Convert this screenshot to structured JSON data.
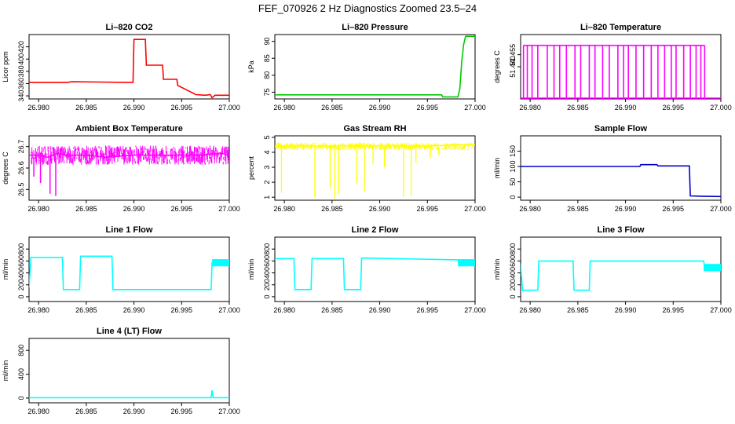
{
  "figure": {
    "title": "FEF_070926  2 Hz Diagnostics Zoomed 23.5–24"
  },
  "chart_data": [
    {
      "type": "line",
      "title": "Li–820 CO2",
      "ylabel": "Licor ppm",
      "color": "#ff0000",
      "xlim": [
        26.979,
        27.0
      ],
      "ylim": [
        335,
        440
      ],
      "x_ticks": [
        "26.980",
        "26.985",
        "26.990",
        "26.995",
        "27.000"
      ],
      "y_ticks": [
        "340",
        "360",
        "380",
        "400",
        "420"
      ],
      "series": [
        {
          "x": [
            26.979,
            26.983,
            26.9835,
            26.9895,
            26.9899,
            26.99,
            26.9912,
            26.9913,
            26.993,
            26.9931,
            26.9945,
            26.9946,
            26.9965,
            26.9975,
            26.998,
            26.9982,
            26.9985,
            27.0
          ],
          "y": [
            362,
            362,
            363,
            362,
            362,
            432,
            432,
            390,
            390,
            367,
            367,
            357,
            342,
            341,
            342,
            337,
            341,
            341
          ]
        }
      ]
    },
    {
      "type": "line",
      "title": "Li–820 Pressure",
      "ylabel": "kPa",
      "color": "#00cc00",
      "xlim": [
        26.979,
        27.0
      ],
      "ylim": [
        73,
        92
      ],
      "x_ticks": [
        "26.980",
        "26.985",
        "26.990",
        "26.995",
        "27.000"
      ],
      "y_ticks": [
        "75",
        "80",
        "85",
        "90"
      ],
      "series": [
        {
          "x": [
            26.979,
            26.9965,
            26.9966,
            26.9982,
            26.9984,
            26.9986,
            26.9988,
            26.999,
            27.0
          ],
          "y": [
            74.2,
            74.2,
            73.6,
            73.6,
            76,
            84,
            89,
            91.5,
            91.5
          ]
        }
      ]
    },
    {
      "type": "line",
      "title": "Li–820 Temperature",
      "ylabel": "degrees C",
      "color": "#ff00ff",
      "xlim": [
        26.979,
        27.0
      ],
      "ylim": [
        51.4,
        51.48
      ],
      "x_ticks": [
        "26.980",
        "26.985",
        "26.990",
        "26.995",
        "27.000"
      ],
      "y_ticks": [
        "51.440",
        "51.455"
      ],
      "series": [
        {
          "x": [
            26.9793,
            26.9797,
            26.9802,
            26.9808,
            26.9818,
            26.9825,
            26.9831,
            26.9838,
            26.9847,
            26.9853,
            26.9862,
            26.9868,
            26.9876,
            26.9883,
            26.9892,
            26.9898,
            26.9903,
            26.9911,
            26.9919,
            26.9927,
            26.9934,
            26.9941,
            26.9948,
            26.9953,
            26.9961,
            26.9968,
            26.9974,
            26.9979,
            26.9983
          ],
          "y": [
            51.4665,
            51.4665,
            51.4665,
            51.4665,
            51.4665,
            51.4665,
            51.4665,
            51.4665,
            51.4665,
            51.4665,
            51.4665,
            51.4665,
            51.4665,
            51.4665,
            51.4665,
            51.4665,
            51.4665,
            51.4665,
            51.4665,
            51.4665,
            51.4665,
            51.4665,
            51.4665,
            51.4665,
            51.4665,
            51.4665,
            51.4665,
            51.4665,
            51.4665
          ]
        }
      ]
    },
    {
      "type": "line",
      "title": "Ambient Box Temperature",
      "ylabel": "degrees C",
      "color": "#ff00ff",
      "xlim": [
        26.979,
        27.0
      ],
      "ylim": [
        26.45,
        26.75
      ],
      "x_ticks": [
        "26.980",
        "26.985",
        "26.990",
        "26.995",
        "27.000"
      ],
      "y_ticks": [
        "26.5",
        "26.6",
        "26.7"
      ],
      "series": [
        {
          "x": [
            26.979,
            26.98,
            26.981,
            26.982,
            26.983,
            26.985,
            26.987,
            26.99,
            26.993,
            26.995,
            26.997,
            26.999,
            27.0
          ],
          "y": [
            26.66,
            26.66,
            26.65,
            26.67,
            26.66,
            26.66,
            26.65,
            26.66,
            26.66,
            26.66,
            26.66,
            26.67,
            26.66
          ]
        }
      ]
    },
    {
      "type": "line",
      "title": "Gas Stream RH",
      "ylabel": "percent",
      "color": "#ffff00",
      "xlim": [
        26.979,
        27.0
      ],
      "ylim": [
        0.8,
        5.1
      ],
      "x_ticks": [
        "26.980",
        "26.985",
        "26.990",
        "26.995",
        "27.000"
      ],
      "y_ticks": [
        "1",
        "2",
        "3",
        "4",
        "5"
      ],
      "series": [
        {
          "x": [
            26.979,
            26.98,
            26.982,
            26.984,
            26.986,
            26.988,
            26.99,
            26.992,
            26.994,
            26.996,
            26.998,
            27.0
          ],
          "y": [
            4.4,
            4.4,
            4.45,
            4.4,
            4.45,
            4.4,
            4.45,
            4.45,
            4.4,
            4.45,
            4.5,
            4.5
          ]
        }
      ]
    },
    {
      "type": "line",
      "title": "Sample Flow",
      "ylabel": "ml/min",
      "color": "#0000cc",
      "xlim": [
        26.979,
        27.0
      ],
      "ylim": [
        -10,
        200
      ],
      "x_ticks": [
        "26.980",
        "26.985",
        "26.990",
        "26.995",
        "27.000"
      ],
      "y_ticks": [
        "0",
        "50",
        "100",
        "150"
      ],
      "series": [
        {
          "x": [
            26.979,
            26.9915,
            26.9916,
            26.9933,
            26.9934,
            26.9967,
            26.9968,
            26.998,
            27.0
          ],
          "y": [
            100,
            100,
            106,
            106,
            102,
            102,
            4,
            3,
            2
          ]
        }
      ]
    },
    {
      "type": "line",
      "title": "Line 1 Flow",
      "ylabel": "ml/min",
      "color": "#00ffff",
      "xlim": [
        26.979,
        27.0
      ],
      "ylim": [
        -80,
        1000
      ],
      "x_ticks": [
        "26.980",
        "26.985",
        "26.990",
        "26.995",
        "27.000"
      ],
      "y_ticks": [
        "0",
        "200",
        "400",
        "600",
        "800"
      ],
      "series": [
        {
          "x": [
            26.979,
            26.9792,
            26.9825,
            26.9826,
            26.9843,
            26.9844,
            26.9877,
            26.9878,
            26.9981,
            26.9982,
            27.0
          ],
          "y": [
            150,
            660,
            660,
            120,
            120,
            680,
            680,
            120,
            120,
            570,
            570
          ]
        }
      ]
    },
    {
      "type": "line",
      "title": "Line 2 Flow",
      "ylabel": "ml/min",
      "color": "#00ffff",
      "xlim": [
        26.979,
        27.0
      ],
      "ylim": [
        -80,
        1000
      ],
      "x_ticks": [
        "26.980",
        "26.985",
        "26.990",
        "26.995",
        "27.000"
      ],
      "y_ticks": [
        "0",
        "200",
        "400",
        "600",
        "800"
      ],
      "series": [
        {
          "x": [
            26.979,
            26.981,
            26.9811,
            26.9828,
            26.9829,
            26.9862,
            26.9863,
            26.988,
            26.9881,
            26.9982,
            26.9983,
            27.0
          ],
          "y": [
            640,
            640,
            120,
            120,
            640,
            640,
            120,
            120,
            650,
            620,
            570,
            570
          ]
        }
      ]
    },
    {
      "type": "line",
      "title": "Line 3 Flow",
      "ylabel": "ml/min",
      "color": "#00ffff",
      "xlim": [
        26.979,
        27.0
      ],
      "ylim": [
        -80,
        1000
      ],
      "x_ticks": [
        "26.980",
        "26.985",
        "26.990",
        "26.995",
        "27.000"
      ],
      "y_ticks": [
        "0",
        "200",
        "400",
        "600",
        "800"
      ],
      "series": [
        {
          "x": [
            26.979,
            26.9792,
            26.9808,
            26.9809,
            26.9845,
            26.9846,
            26.9862,
            26.9863,
            26.9982,
            26.9983,
            27.0
          ],
          "y": [
            540,
            110,
            110,
            600,
            600,
            110,
            110,
            600,
            600,
            490,
            490
          ]
        }
      ]
    },
    {
      "type": "line",
      "title": "Line 4 (LT) Flow",
      "ylabel": "ml/min",
      "color": "#00ffff",
      "xlim": [
        26.979,
        27.0
      ],
      "ylim": [
        -80,
        1000
      ],
      "x_ticks": [
        "26.980",
        "26.985",
        "26.990",
        "26.995",
        "27.000"
      ],
      "y_ticks": [
        "0",
        "400",
        "800"
      ],
      "series": [
        {
          "x": [
            26.979,
            26.9981,
            26.9982,
            26.9983,
            27.0
          ],
          "y": [
            5,
            5,
            130,
            5,
            5
          ]
        }
      ]
    }
  ]
}
